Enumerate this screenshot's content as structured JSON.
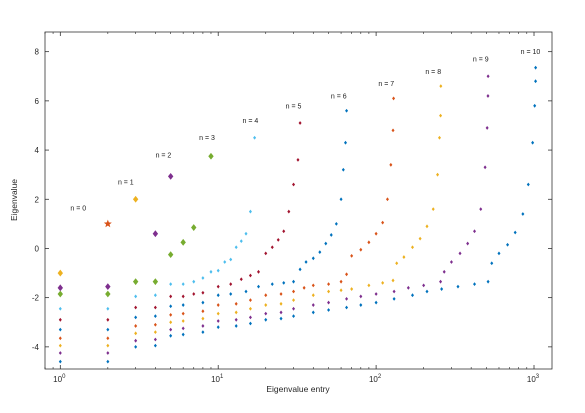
{
  "chart_data": {
    "type": "scatter",
    "title": "",
    "xlabel": "Eigenvalue entry",
    "ylabel": "Eigenvalue",
    "xscale": "log",
    "xlim": [
      0.8,
      1300
    ],
    "ylim": [
      -4.9,
      8.8
    ],
    "x_ticks": [
      {
        "value": 1,
        "base": "10",
        "exp": "0"
      },
      {
        "value": 10,
        "base": "10",
        "exp": "1"
      },
      {
        "value": 100,
        "base": "10",
        "exp": "2"
      },
      {
        "value": 1000,
        "base": "10",
        "exp": "3"
      }
    ],
    "y_ticks": [
      -4,
      -2,
      0,
      2,
      4,
      6,
      8
    ],
    "grid": false,
    "box": true,
    "annotations": [
      {
        "text": "n = 0",
        "x": 1.3,
        "y": 1.55
      },
      {
        "text": "n = 1",
        "x": 2.6,
        "y": 2.6
      },
      {
        "text": "n = 2",
        "x": 4.5,
        "y": 3.7
      },
      {
        "text": "n = 3",
        "x": 8.5,
        "y": 4.4
      },
      {
        "text": "n = 4",
        "x": 16,
        "y": 5.1
      },
      {
        "text": "n = 5",
        "x": 30,
        "y": 5.7
      },
      {
        "text": "n = 6",
        "x": 58,
        "y": 6.1
      },
      {
        "text": "n = 7",
        "x": 116,
        "y": 6.6
      },
      {
        "text": "n = 8",
        "x": 230,
        "y": 7.1
      },
      {
        "text": "n = 9",
        "x": 460,
        "y": 7.6
      },
      {
        "text": "n = 10",
        "x": 950,
        "y": 7.9
      }
    ],
    "series": [
      {
        "n": 0,
        "color": "#D95319",
        "marker": "star",
        "points": [
          [
            2,
            1.0
          ]
        ]
      },
      {
        "n": 1,
        "color": "#EDB120",
        "marker": "diamond",
        "points": [
          [
            1,
            -1.0
          ],
          [
            3,
            2.0
          ]
        ]
      },
      {
        "n": 2,
        "color": "#7E2F8E",
        "marker": "diamond",
        "points": [
          [
            1,
            -1.6
          ],
          [
            2,
            -1.55
          ],
          [
            4,
            0.6
          ],
          [
            5,
            2.93
          ]
        ]
      },
      {
        "n": 3,
        "color": "#77AC30",
        "marker": "diamond",
        "points": [
          [
            1,
            -1.85
          ],
          [
            2,
            -1.85
          ],
          [
            3,
            -1.35
          ],
          [
            4,
            -1.35
          ],
          [
            5,
            -0.25
          ],
          [
            6,
            0.25
          ],
          [
            7,
            0.85
          ],
          [
            9,
            3.75
          ]
        ]
      },
      {
        "n": 4,
        "color": "#4DBEEE",
        "marker": "dot",
        "points": [
          [
            1,
            -2.45
          ],
          [
            2,
            -2.45
          ],
          [
            3,
            -1.95
          ],
          [
            4,
            -1.9
          ],
          [
            5,
            -1.45
          ],
          [
            6,
            -1.45
          ],
          [
            7,
            -1.35
          ],
          [
            8,
            -1.2
          ],
          [
            9,
            -0.95
          ],
          [
            10,
            -0.9
          ],
          [
            11,
            -0.55
          ],
          [
            12,
            -0.45
          ],
          [
            13,
            0.05
          ],
          [
            14,
            0.3
          ],
          [
            15,
            0.6
          ],
          [
            16,
            1.5
          ],
          [
            17,
            4.5
          ]
        ]
      },
      {
        "n": 5,
        "color": "#A2142F",
        "marker": "dot",
        "points": [
          [
            1,
            -2.9
          ],
          [
            2,
            -2.9
          ],
          [
            3,
            -2.4
          ],
          [
            4,
            -2.4
          ],
          [
            5,
            -1.95
          ],
          [
            6,
            -1.95
          ],
          [
            7,
            -1.85
          ],
          [
            8,
            -1.8
          ],
          [
            10,
            -1.55
          ],
          [
            12,
            -1.45
          ],
          [
            14,
            -1.25
          ],
          [
            16,
            -1.1
          ],
          [
            18,
            -0.95
          ],
          [
            20,
            -0.2
          ],
          [
            22,
            0.05
          ],
          [
            24,
            0.35
          ],
          [
            26,
            0.7
          ],
          [
            28,
            1.5
          ],
          [
            30,
            2.6
          ],
          [
            32,
            3.6
          ],
          [
            33,
            5.1
          ]
        ]
      },
      {
        "n": 6,
        "color": "#0072BD",
        "marker": "dot",
        "points": [
          [
            1,
            -3.3
          ],
          [
            2,
            -3.3
          ],
          [
            3,
            -2.8
          ],
          [
            4,
            -2.75
          ],
          [
            5,
            -2.35
          ],
          [
            6,
            -2.3
          ],
          [
            8,
            -2.2
          ],
          [
            10,
            -1.9
          ],
          [
            12,
            -1.85
          ],
          [
            15,
            -1.75
          ],
          [
            18,
            -1.55
          ],
          [
            22,
            -1.45
          ],
          [
            26,
            -1.4
          ],
          [
            30,
            -1.35
          ],
          [
            33,
            -0.85
          ],
          [
            36,
            -0.55
          ],
          [
            40,
            -0.4
          ],
          [
            44,
            -0.15
          ],
          [
            48,
            0.2
          ],
          [
            52,
            0.55
          ],
          [
            56,
            1.0
          ],
          [
            60,
            2.0
          ],
          [
            62,
            3.2
          ],
          [
            64,
            4.3
          ],
          [
            65,
            5.6
          ]
        ]
      },
      {
        "n": 7,
        "color": "#D95319",
        "marker": "dot",
        "points": [
          [
            1,
            -3.65
          ],
          [
            2,
            -3.65
          ],
          [
            3,
            -3.15
          ],
          [
            4,
            -3.1
          ],
          [
            5,
            -2.7
          ],
          [
            6,
            -2.65
          ],
          [
            8,
            -2.55
          ],
          [
            10,
            -2.3
          ],
          [
            13,
            -2.25
          ],
          [
            16,
            -2.1
          ],
          [
            20,
            -1.9
          ],
          [
            25,
            -1.85
          ],
          [
            30,
            -1.75
          ],
          [
            35,
            -1.6
          ],
          [
            40,
            -1.5
          ],
          [
            50,
            -1.45
          ],
          [
            60,
            -1.35
          ],
          [
            65,
            -1.05
          ],
          [
            70,
            -0.3
          ],
          [
            80,
            -0.05
          ],
          [
            90,
            0.25
          ],
          [
            100,
            0.6
          ],
          [
            110,
            1.05
          ],
          [
            118,
            2.0
          ],
          [
            124,
            3.4
          ],
          [
            128,
            4.8
          ],
          [
            129,
            6.1
          ]
        ]
      },
      {
        "n": 8,
        "color": "#EDB120",
        "marker": "dot",
        "points": [
          [
            1,
            -3.95
          ],
          [
            2,
            -3.95
          ],
          [
            3,
            -3.45
          ],
          [
            4,
            -3.4
          ],
          [
            5,
            -3.0
          ],
          [
            6,
            -2.95
          ],
          [
            8,
            -2.85
          ],
          [
            10,
            -2.65
          ],
          [
            13,
            -2.6
          ],
          [
            16,
            -2.45
          ],
          [
            20,
            -2.3
          ],
          [
            25,
            -2.25
          ],
          [
            30,
            -2.1
          ],
          [
            40,
            -1.9
          ],
          [
            50,
            -1.75
          ],
          [
            60,
            -1.7
          ],
          [
            70,
            -1.65
          ],
          [
            90,
            -1.5
          ],
          [
            110,
            -1.4
          ],
          [
            128,
            -1.3
          ],
          [
            135,
            -0.6
          ],
          [
            150,
            -0.35
          ],
          [
            170,
            0.05
          ],
          [
            190,
            0.4
          ],
          [
            210,
            0.9
          ],
          [
            230,
            1.6
          ],
          [
            245,
            3.0
          ],
          [
            252,
            4.5
          ],
          [
            256,
            5.4
          ],
          [
            257,
            6.6
          ]
        ]
      },
      {
        "n": 9,
        "color": "#7E2F8E",
        "marker": "dot",
        "points": [
          [
            1,
            -4.25
          ],
          [
            2,
            -4.25
          ],
          [
            3,
            -3.75
          ],
          [
            4,
            -3.7
          ],
          [
            5,
            -3.3
          ],
          [
            6,
            -3.25
          ],
          [
            8,
            -3.15
          ],
          [
            10,
            -2.95
          ],
          [
            13,
            -2.9
          ],
          [
            16,
            -2.8
          ],
          [
            20,
            -2.65
          ],
          [
            25,
            -2.6
          ],
          [
            30,
            -2.45
          ],
          [
            40,
            -2.3
          ],
          [
            50,
            -2.2
          ],
          [
            65,
            -2.05
          ],
          [
            80,
            -1.95
          ],
          [
            100,
            -1.85
          ],
          [
            130,
            -1.75
          ],
          [
            160,
            -1.6
          ],
          [
            200,
            -1.5
          ],
          [
            256,
            -1.35
          ],
          [
            270,
            -0.95
          ],
          [
            300,
            -0.55
          ],
          [
            340,
            -0.2
          ],
          [
            380,
            0.2
          ],
          [
            420,
            0.7
          ],
          [
            460,
            1.6
          ],
          [
            490,
            3.3
          ],
          [
            505,
            4.9
          ],
          [
            511,
            6.2
          ],
          [
            512,
            7.0
          ]
        ]
      },
      {
        "n": 10,
        "color": "#0072BD",
        "marker": "dot",
        "points": [
          [
            1,
            -4.6
          ],
          [
            2,
            -4.6
          ],
          [
            3,
            -4.0
          ],
          [
            4,
            -3.95
          ],
          [
            5,
            -3.55
          ],
          [
            6,
            -3.5
          ],
          [
            8,
            -3.4
          ],
          [
            10,
            -3.2
          ],
          [
            13,
            -3.15
          ],
          [
            16,
            -3.05
          ],
          [
            20,
            -2.9
          ],
          [
            25,
            -2.85
          ],
          [
            30,
            -2.75
          ],
          [
            40,
            -2.6
          ],
          [
            50,
            -2.5
          ],
          [
            65,
            -2.4
          ],
          [
            80,
            -2.3
          ],
          [
            100,
            -2.2
          ],
          [
            130,
            -2.05
          ],
          [
            170,
            -1.9
          ],
          [
            210,
            -1.75
          ],
          [
            260,
            -1.65
          ],
          [
            330,
            -1.55
          ],
          [
            420,
            -1.45
          ],
          [
            512,
            -1.35
          ],
          [
            540,
            -0.6
          ],
          [
            600,
            -0.2
          ],
          [
            680,
            0.15
          ],
          [
            760,
            0.65
          ],
          [
            850,
            1.4
          ],
          [
            920,
            2.6
          ],
          [
            980,
            4.3
          ],
          [
            1010,
            5.8
          ],
          [
            1023,
            6.8
          ],
          [
            1024,
            7.35
          ]
        ]
      }
    ]
  }
}
